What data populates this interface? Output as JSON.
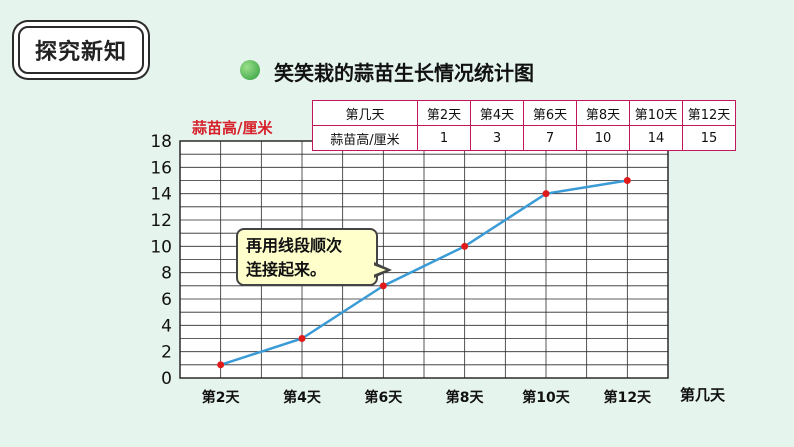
{
  "badge": "探究新知",
  "table": {
    "row1_label": "第几天",
    "row2_label": "蒜苗高/厘米",
    "days": [
      "第2天",
      "第4天",
      "第6天",
      "第8天",
      "第10天",
      "第12天"
    ],
    "heights": [
      "1",
      "3",
      "7",
      "10",
      "14",
      "15"
    ]
  },
  "bubble": {
    "line1": "再用线段顺次",
    "line2": "连接起来。"
  },
  "colors": {
    "line": "#3a9bd6",
    "point": "#e01a1a",
    "grid": "#2a2a2a",
    "table_border": "#c2185b",
    "ylabel": "#d6202a"
  },
  "chart_data": {
    "type": "line",
    "title": "笑笑栽的蒜苗生长情况统计图",
    "xlabel": "第几天",
    "ylabel": "蒜苗高/厘米",
    "categories": [
      "第2天",
      "第4天",
      "第6天",
      "第8天",
      "第10天",
      "第12天"
    ],
    "values": [
      1,
      3,
      7,
      10,
      14,
      15
    ],
    "ylim": [
      0,
      18
    ],
    "yticks": [
      "0",
      "2",
      "4",
      "6",
      "8",
      "10",
      "12",
      "14",
      "16",
      "18"
    ],
    "grid": true
  }
}
